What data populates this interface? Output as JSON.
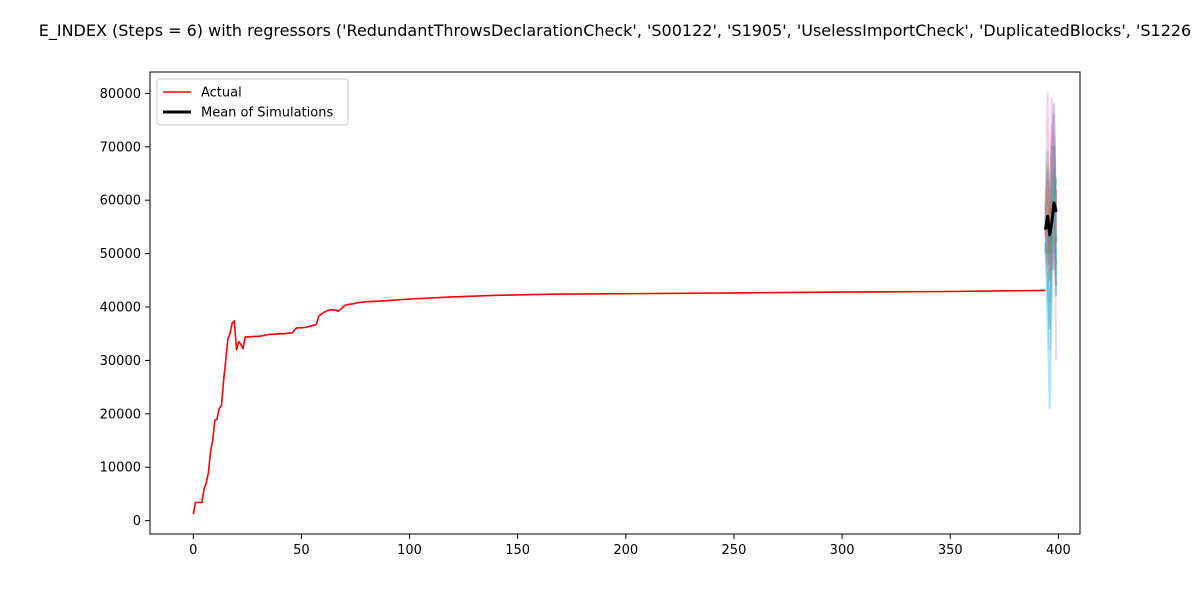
{
  "chart_data": {
    "type": "line",
    "title": "E_INDEX (Steps = 6) with regressors ('RedundantThrowsDeclarationCheck', 'S00122', 'S1905', 'UselessImportCheck', 'DuplicatedBlocks', 'S1226",
    "xlabel": "",
    "ylabel": "",
    "xlim": [
      -20,
      410
    ],
    "ylim": [
      -2500,
      84000
    ],
    "xticks": [
      0,
      50,
      100,
      150,
      200,
      250,
      300,
      350,
      400
    ],
    "yticks": [
      0,
      10000,
      20000,
      30000,
      40000,
      50000,
      60000,
      70000,
      80000
    ],
    "grid": false,
    "legend": {
      "placement": "top-left",
      "entries": [
        "Actual",
        "Mean of Simulations"
      ]
    },
    "series": [
      {
        "name": "Actual",
        "color": "#ff0000",
        "x": [
          0,
          1,
          2,
          3,
          4,
          5,
          6,
          7,
          8,
          9,
          10,
          11,
          12,
          13,
          14,
          15,
          16,
          17,
          18,
          19,
          20,
          21,
          22,
          23,
          24,
          25,
          26,
          28,
          30,
          32,
          34,
          36,
          38,
          40,
          42,
          44,
          46,
          47,
          48,
          50,
          52,
          54,
          56,
          57,
          58,
          59,
          60,
          62,
          64,
          66,
          67,
          68,
          70,
          72,
          74,
          76,
          78,
          80,
          90,
          100,
          120,
          140,
          166,
          200,
          250,
          300,
          350,
          394
        ],
        "y": [
          1200,
          3400,
          3400,
          3400,
          3400,
          6000,
          7000,
          9000,
          13000,
          15000,
          18800,
          19000,
          21000,
          21500,
          26000,
          30000,
          34000,
          35000,
          37000,
          37400,
          32000,
          33500,
          33000,
          32200,
          34400,
          34400,
          34400,
          34500,
          34500,
          34600,
          34800,
          34900,
          34900,
          35000,
          35000,
          35100,
          35200,
          35800,
          36100,
          36100,
          36200,
          36400,
          36600,
          36800,
          38300,
          38600,
          38900,
          39300,
          39500,
          39400,
          39200,
          39500,
          40300,
          40500,
          40600,
          40800,
          40900,
          41000,
          41200,
          41500,
          41900,
          42200,
          42400,
          42500,
          42650,
          42800,
          42900,
          43100
        ]
      },
      {
        "name": "Mean of Simulations",
        "color": "#000000",
        "x": [
          394,
          395,
          396,
          397,
          398,
          399
        ],
        "y": [
          54500,
          57000,
          53500,
          56000,
          59500,
          57800
        ]
      }
    ],
    "simulations": [
      {
        "color": "#1f77b4",
        "x": [
          394,
          395,
          396,
          397,
          398,
          399
        ],
        "y": [
          56000,
          66000,
          48000,
          58000,
          70000,
          52000
        ]
      },
      {
        "color": "#ff7f0e",
        "x": [
          394,
          395,
          396,
          397,
          398,
          399
        ],
        "y": [
          52000,
          48000,
          60000,
          52000,
          47000,
          62000
        ]
      },
      {
        "color": "#2ca02c",
        "x": [
          394,
          395,
          396,
          397,
          398,
          399
        ],
        "y": [
          58000,
          69000,
          56000,
          64000,
          72000,
          58000
        ]
      },
      {
        "color": "#d62728",
        "x": [
          394,
          395,
          396,
          397,
          398,
          399
        ],
        "y": [
          50000,
          55000,
          45000,
          60000,
          53000,
          48000
        ]
      },
      {
        "color": "#9467bd",
        "x": [
          394,
          395,
          396,
          397,
          398,
          399
        ],
        "y": [
          54000,
          60000,
          52000,
          66000,
          76000,
          50000
        ]
      },
      {
        "color": "#8c564b",
        "x": [
          394,
          395,
          396,
          397,
          398,
          399
        ],
        "y": [
          51000,
          50000,
          58000,
          47000,
          55000,
          44000
        ]
      },
      {
        "color": "#e377c2",
        "x": [
          394,
          395,
          396,
          397,
          398,
          399
        ],
        "y": [
          57000,
          80000,
          46000,
          79000,
          64000,
          30000
        ]
      },
      {
        "color": "#7f7f7f",
        "x": [
          394,
          395,
          396,
          397,
          398,
          399
        ],
        "y": [
          53000,
          58000,
          41000,
          62000,
          58000,
          52000
        ]
      },
      {
        "color": "#bcbd22",
        "x": [
          394,
          395,
          396,
          397,
          398,
          399
        ],
        "y": [
          55000,
          61000,
          57000,
          56000,
          65000,
          60000
        ]
      },
      {
        "color": "#17becf",
        "x": [
          394,
          395,
          396,
          397,
          398,
          399
        ],
        "y": [
          52000,
          38000,
          21000,
          43000,
          60000,
          46000
        ]
      },
      {
        "color": "#1f77b4",
        "x": [
          394,
          395,
          396,
          397,
          398,
          399
        ],
        "y": [
          55000,
          47000,
          36000,
          50000,
          66000,
          42000
        ]
      },
      {
        "color": "#ff7f0e",
        "x": [
          394,
          395,
          396,
          397,
          398,
          399
        ],
        "y": [
          53000,
          63000,
          55000,
          60000,
          52000,
          56000
        ]
      },
      {
        "color": "#2ca02c",
        "x": [
          394,
          395,
          396,
          397,
          398,
          399
        ],
        "y": [
          56000,
          64000,
          50000,
          70000,
          60000,
          64000
        ]
      },
      {
        "color": "#9467bd",
        "x": [
          394,
          395,
          396,
          397,
          398,
          399
        ],
        "y": [
          54000,
          52000,
          62000,
          72000,
          78000,
          56000
        ]
      },
      {
        "color": "#e377c2",
        "x": [
          394,
          395,
          396,
          397,
          398,
          399
        ],
        "y": [
          55000,
          65000,
          56000,
          74000,
          48000,
          62000
        ]
      },
      {
        "color": "#17becf",
        "x": [
          394,
          395,
          396,
          397,
          398,
          399
        ],
        "y": [
          53000,
          45000,
          32000,
          55000,
          63000,
          48000
        ]
      }
    ]
  }
}
